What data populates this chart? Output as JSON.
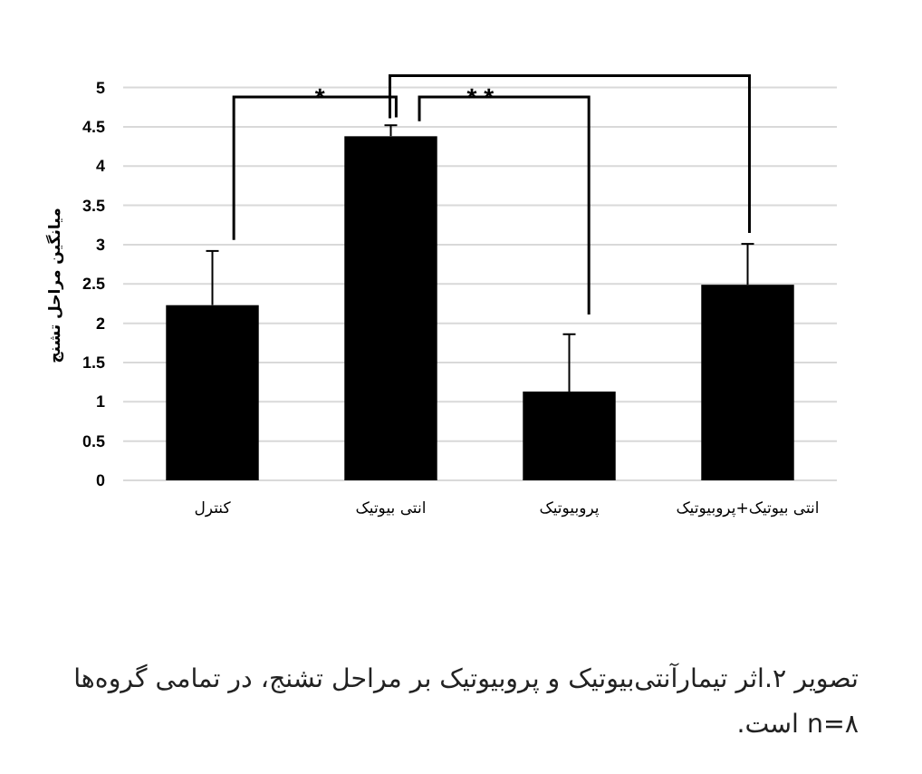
{
  "chart_data": {
    "type": "bar",
    "ylabel": "میانگین مراحل تشنج",
    "categories": [
      "کنترل",
      "انتی بیوتیک",
      "پروبیوتیک",
      "انتی بیوتیک+پروبیوتیک"
    ],
    "values": [
      2.23,
      4.38,
      1.13,
      2.49
    ],
    "errors": [
      [
        2.23,
        2.92
      ],
      [
        4.38,
        4.52
      ],
      [
        1.13,
        1.86
      ],
      [
        2.49,
        3.01
      ]
    ],
    "color": "#000000",
    "ylim": [
      0,
      5
    ],
    "yticks": [
      0,
      0.5,
      1,
      1.5,
      2,
      2.5,
      3,
      3.5,
      4,
      4.5,
      5
    ],
    "grid": "y",
    "annotations": [
      "*",
      "* *",
      "تصویر ۲.اثر تیمارآنتی‌بیوتیک و پروبیوتیک بر مراحل تشنج، در تمامی گروه‌ها n=۸ است."
    ]
  }
}
